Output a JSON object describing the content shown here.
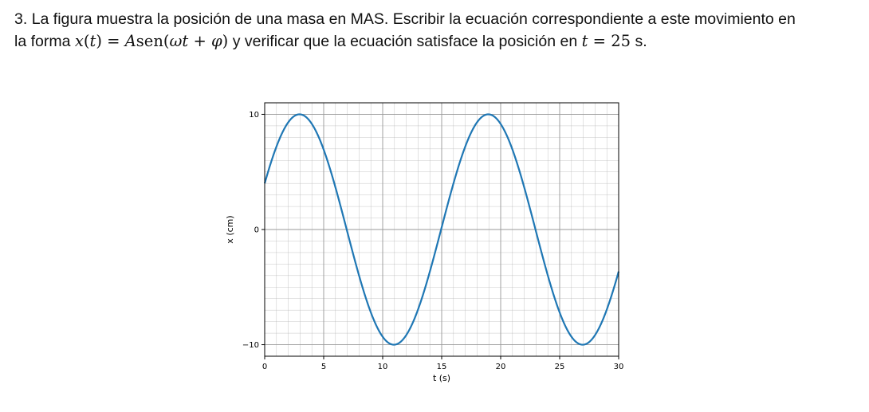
{
  "problem": {
    "number": "3.",
    "text_part1": "La figura muestra la posición de una masa en MAS. Escribir la ecuación correspondiente a este movimiento en",
    "text_part2_pre": "la forma",
    "equation_x": "x",
    "equation_open": "(",
    "equation_t": "t",
    "equation_close": ")",
    "equation_eq": " = ",
    "equation_A": "A",
    "equation_sen": "sen",
    "equation_paren_open": "(",
    "equation_omega": "ω",
    "equation_t2": "t",
    "equation_plus": " + ",
    "equation_phi": "φ",
    "equation_paren_close": ")",
    "text_part2_mid": "y verificar que la ecuación satisface la posición en",
    "time_var": "t",
    "time_eq": " = ",
    "time_value": "25",
    "time_unit": "s."
  },
  "chart_data": {
    "type": "line",
    "xlabel": "t (s)",
    "ylabel": "x (cm)",
    "xlim": [
      0,
      30
    ],
    "ylim": [
      -11,
      11
    ],
    "xticks": [
      0,
      5,
      10,
      15,
      20,
      25,
      30
    ],
    "yticks": [
      -10,
      0,
      10
    ],
    "ytick_labels": [
      "−10",
      "0",
      "10"
    ],
    "grid": true,
    "minor_grid": true,
    "series": [
      {
        "color": "#1f77b4",
        "function": "10*sin(2*pi*t/16 + 0.412)",
        "amplitude": 10,
        "period": 16,
        "phase": 0.412,
        "t_range": [
          0,
          30
        ]
      }
    ]
  },
  "colors": {
    "line": "#1f77b4",
    "grid": "#b0b0b0",
    "axes": "#000000"
  }
}
